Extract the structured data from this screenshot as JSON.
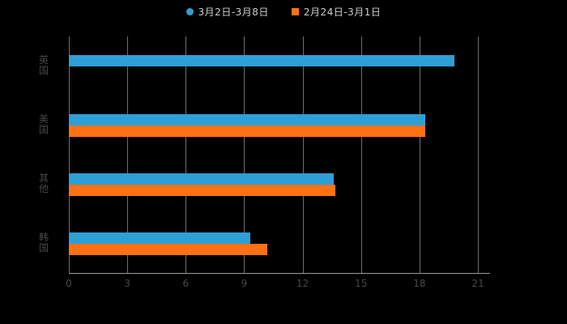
{
  "legend": {
    "series1_label": "3月2日-3月8日",
    "series2_label": "2月24日-3月1日"
  },
  "colors": {
    "background": "#000000",
    "series1": "#2E9FD6",
    "series2": "#FF7112",
    "gridline": "#6f6f6f",
    "axis_line": "#9a9a9a",
    "axis_text": "#474747",
    "legend_text": "#cfcfcf"
  },
  "chart_data": {
    "type": "bar",
    "orientation": "horizontal",
    "title": "",
    "xlabel": "",
    "ylabel": "",
    "categories": [
      "英国",
      "美国",
      "其他",
      "韩国"
    ],
    "series": [
      {
        "name": "3月2日-3月8日",
        "color": "#2E9FD6",
        "marker": "circle",
        "values": [
          19.8,
          18.3,
          13.6,
          9.3
        ]
      },
      {
        "name": "2月24日-3月1日",
        "color": "#FF7112",
        "marker": "square",
        "values": [
          0,
          18.3,
          13.7,
          10.2
        ]
      }
    ],
    "xlim": [
      0,
      21
    ],
    "xticks": [
      0,
      3,
      6,
      9,
      12,
      15,
      18,
      21
    ],
    "grid": true,
    "legend_position": "top"
  }
}
